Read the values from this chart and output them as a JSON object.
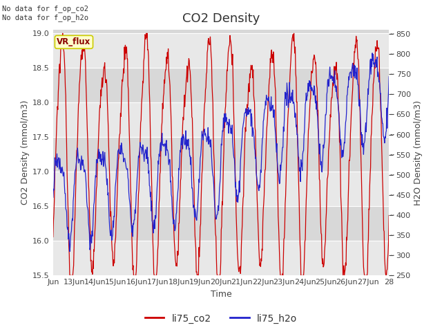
{
  "title": "CO2 Density",
  "xlabel": "Time",
  "ylabel_left": "CO2 Density (mmol/m3)",
  "ylabel_right": "H2O Density (mmol/m3)",
  "annotation_top": "No data for f_op_co2\nNo data for f_op_h2o",
  "vr_flux_label": "VR_flux",
  "legend_labels": [
    "li75_co2",
    "li75_h2o"
  ],
  "color_co2": "#cc0000",
  "color_h2o": "#2222cc",
  "ylim_left": [
    15.5,
    19.05
  ],
  "ylim_right": [
    250,
    860
  ],
  "yticks_left": [
    15.5,
    16.0,
    16.5,
    17.0,
    17.5,
    18.0,
    18.5,
    19.0
  ],
  "yticks_right": [
    250,
    300,
    350,
    400,
    450,
    500,
    550,
    600,
    650,
    700,
    750,
    800,
    850
  ],
  "xtick_labels": [
    "Jun",
    "13Jun",
    "14Jun",
    "15Jun",
    "16Jun",
    "17Jun",
    "18Jun",
    "19Jun",
    "20Jun",
    "21Jun",
    "22Jun",
    "23Jun",
    "24Jun",
    "25Jun",
    "26Jun",
    "27Jun",
    "28"
  ],
  "background_color": "#ffffff",
  "plot_bg_color": "#d8d8d8",
  "grid_color": "#ffffff",
  "band_color": "#e8e8e8",
  "vr_flux_bg": "#ffffcc",
  "vr_flux_border": "#cccc00",
  "title_fontsize": 13,
  "axis_fontsize": 9,
  "tick_fontsize": 8,
  "legend_fontsize": 10
}
